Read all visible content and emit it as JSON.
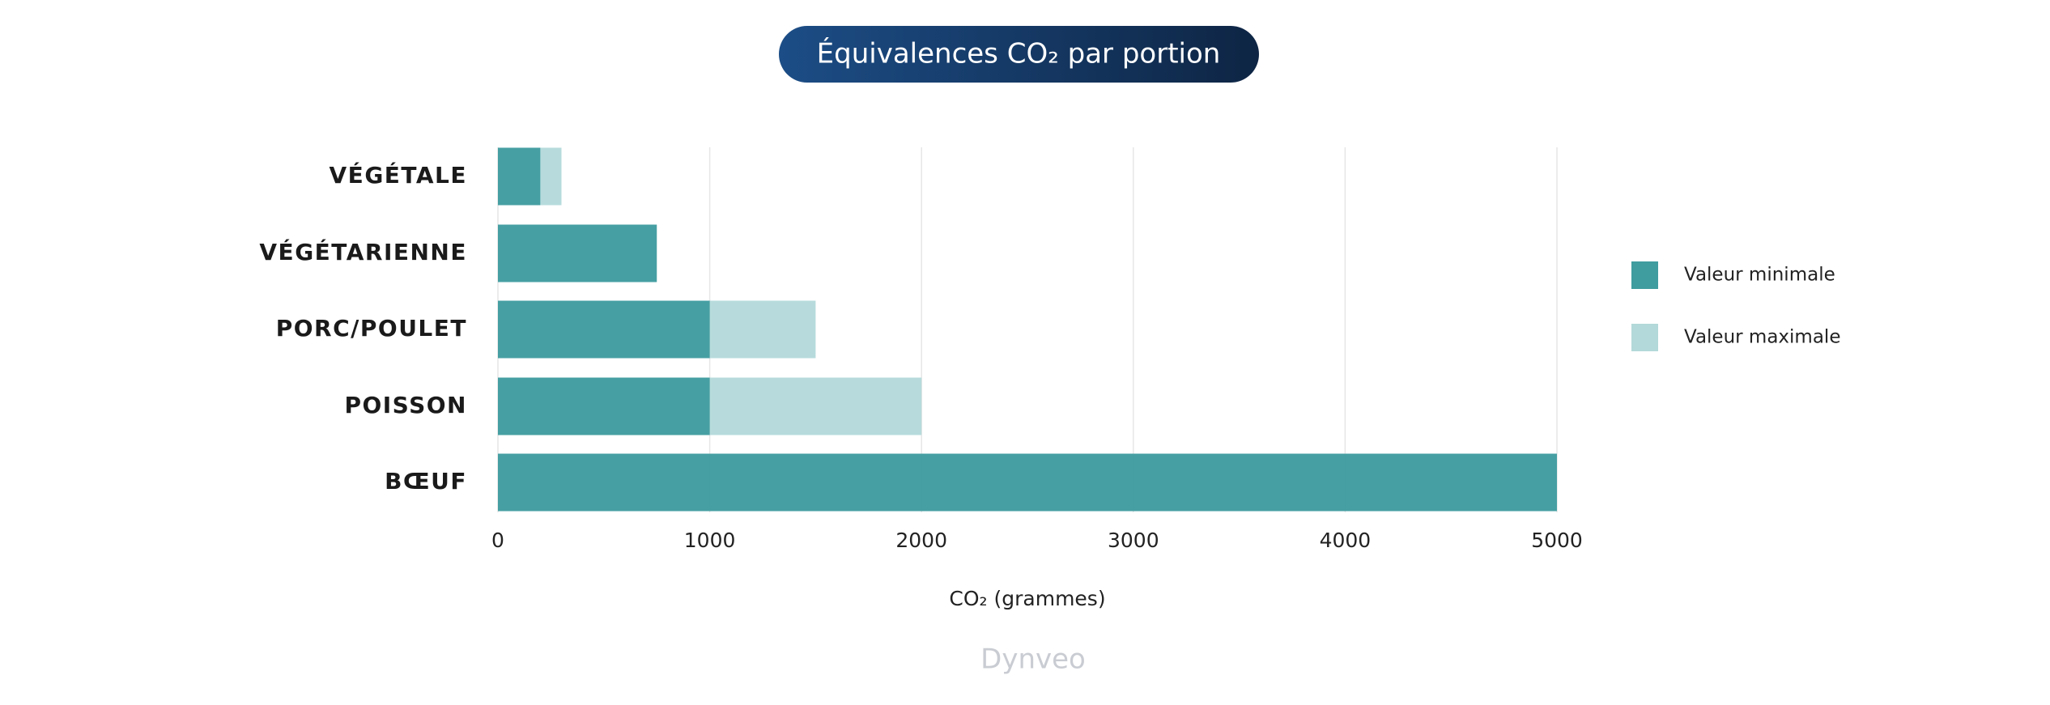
{
  "chart_data": {
    "type": "bar",
    "orientation": "horizontal",
    "overlap": true,
    "title": "Équivalences CO₂ par portion",
    "x_label": "CO₂ (grammes)",
    "watermark": "Dynveo",
    "categories": [
      "VÉGÉTALE",
      "VÉGÉTARIENNE",
      "PORC/POULET",
      "POISSON",
      "BŒUF"
    ],
    "series": [
      {
        "name": "Valeur minimale",
        "color": "#3f9c9f",
        "values": [
          200,
          750,
          1000,
          1000,
          5000
        ]
      },
      {
        "name": "Valeur maximale",
        "color": "#b3d9da",
        "values": [
          300,
          750,
          1500,
          2000,
          5000
        ]
      }
    ],
    "xlim": [
      0,
      5000
    ],
    "xticks": [
      0,
      1000,
      2000,
      3000,
      4000,
      5000
    ],
    "grid": true,
    "legend": "right"
  }
}
